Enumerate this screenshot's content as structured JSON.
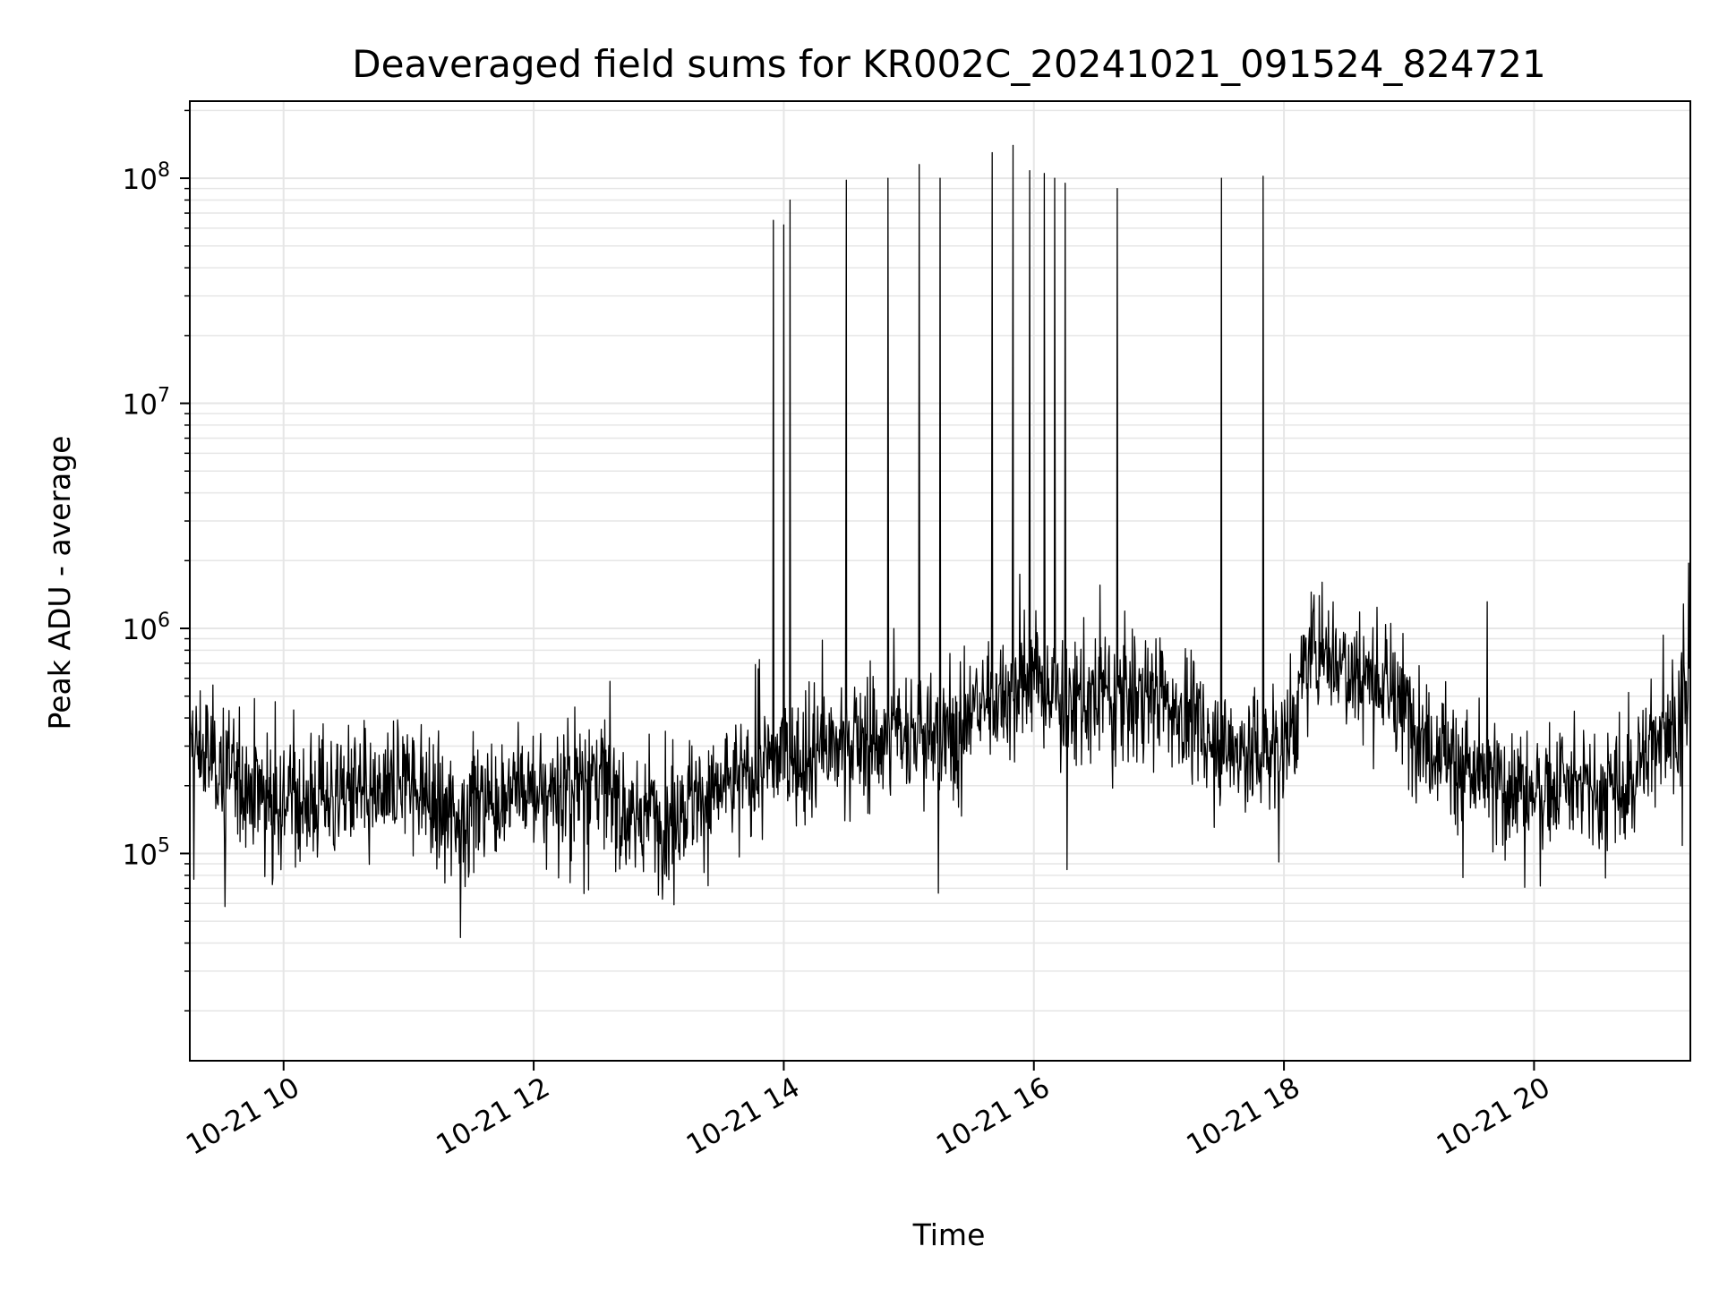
{
  "chart_data": {
    "type": "line",
    "title": "Deaveraged field sums for KR002C_20241021_091524_824721",
    "xlabel": "Time",
    "ylabel": "Peak ADU - average",
    "x_axis": {
      "kind": "datetime",
      "range": [
        "2024-10-21 09:15",
        "2024-10-21 21:15"
      ],
      "ticks": [
        {
          "value": "2024-10-21 10:00",
          "label": "10-21 10"
        },
        {
          "value": "2024-10-21 12:00",
          "label": "10-21 12"
        },
        {
          "value": "2024-10-21 14:00",
          "label": "10-21 14"
        },
        {
          "value": "2024-10-21 16:00",
          "label": "10-21 16"
        },
        {
          "value": "2024-10-21 18:00",
          "label": "10-21 18"
        },
        {
          "value": "2024-10-21 20:00",
          "label": "10-21 20"
        }
      ]
    },
    "y_axis": {
      "scale": "log",
      "range": [
        12000,
        220000000
      ],
      "ticks": [
        {
          "value": 100000,
          "base": "10",
          "exp": "5"
        },
        {
          "value": 1000000,
          "base": "10",
          "exp": "6"
        },
        {
          "value": 10000000,
          "base": "10",
          "exp": "7"
        },
        {
          "value": 100000000,
          "base": "10",
          "exp": "8"
        }
      ]
    },
    "grid": true,
    "series": [
      {
        "color": "#000000",
        "points": [
          [
            "2024-10-21 09:15",
            300000
          ],
          [
            "2024-10-21 09:30",
            250000
          ],
          [
            "2024-10-21 09:45",
            200000
          ],
          [
            "2024-10-21 10:00",
            180000
          ],
          [
            "2024-10-21 10:15",
            170000
          ],
          [
            "2024-10-21 10:30",
            200000
          ],
          [
            "2024-10-21 10:45",
            170000
          ],
          [
            "2024-10-21 11:00",
            220000
          ],
          [
            "2024-10-21 11:15",
            150000
          ],
          [
            "2024-10-21 11:30",
            160000
          ],
          [
            "2024-10-21 11:45",
            190000
          ],
          [
            "2024-10-21 12:00",
            180000
          ],
          [
            "2024-10-21 12:15",
            200000
          ],
          [
            "2024-10-21 12:30",
            230000
          ],
          [
            "2024-10-21 12:45",
            140000
          ],
          [
            "2024-10-21 13:00",
            150000
          ],
          [
            "2024-10-21 13:15",
            170000
          ],
          [
            "2024-10-21 13:30",
            190000
          ],
          [
            "2024-10-21 13:45",
            230000
          ],
          [
            "2024-10-21 14:00",
            270000
          ],
          [
            "2024-10-21 14:15",
            280000
          ],
          [
            "2024-10-21 14:30",
            300000
          ],
          [
            "2024-10-21 14:45",
            320000
          ],
          [
            "2024-10-21 15:00",
            350000
          ],
          [
            "2024-10-21 15:15",
            300000
          ],
          [
            "2024-10-21 15:30",
            450000
          ],
          [
            "2024-10-21 15:45",
            500000
          ],
          [
            "2024-10-21 16:00",
            600000
          ],
          [
            "2024-10-21 16:15",
            450000
          ],
          [
            "2024-10-21 16:30",
            480000
          ],
          [
            "2024-10-21 16:45",
            500000
          ],
          [
            "2024-10-21 17:00",
            520000
          ],
          [
            "2024-10-21 17:15",
            400000
          ],
          [
            "2024-10-21 17:30",
            300000
          ],
          [
            "2024-10-21 17:45",
            280000
          ],
          [
            "2024-10-21 18:00",
            300000
          ],
          [
            "2024-10-21 18:15",
            900000
          ],
          [
            "2024-10-21 18:30",
            700000
          ],
          [
            "2024-10-21 18:45",
            600000
          ],
          [
            "2024-10-21 19:00",
            400000
          ],
          [
            "2024-10-21 19:15",
            300000
          ],
          [
            "2024-10-21 19:30",
            220000
          ],
          [
            "2024-10-21 19:45",
            200000
          ],
          [
            "2024-10-21 20:00",
            190000
          ],
          [
            "2024-10-21 20:15",
            200000
          ],
          [
            "2024-10-21 20:30",
            180000
          ],
          [
            "2024-10-21 20:45",
            200000
          ],
          [
            "2024-10-21 21:00",
            350000
          ],
          [
            "2024-10-21 21:15",
            450000
          ]
        ],
        "spikes": [
          [
            "2024-10-21 13:55",
            65000000
          ],
          [
            "2024-10-21 14:00",
            62000000
          ],
          [
            "2024-10-21 14:03",
            80000000
          ],
          [
            "2024-10-21 14:30",
            98000000
          ],
          [
            "2024-10-21 14:50",
            100000000
          ],
          [
            "2024-10-21 15:05",
            115000000
          ],
          [
            "2024-10-21 15:15",
            100000000
          ],
          [
            "2024-10-21 15:40",
            130000000
          ],
          [
            "2024-10-21 15:50",
            140000000
          ],
          [
            "2024-10-21 15:58",
            108000000
          ],
          [
            "2024-10-21 16:05",
            105000000
          ],
          [
            "2024-10-21 16:10",
            100000000
          ],
          [
            "2024-10-21 16:15",
            95000000
          ],
          [
            "2024-10-21 16:40",
            90000000
          ],
          [
            "2024-10-21 17:30",
            100000000
          ],
          [
            "2024-10-21 17:50",
            102000000
          ]
        ]
      }
    ]
  }
}
